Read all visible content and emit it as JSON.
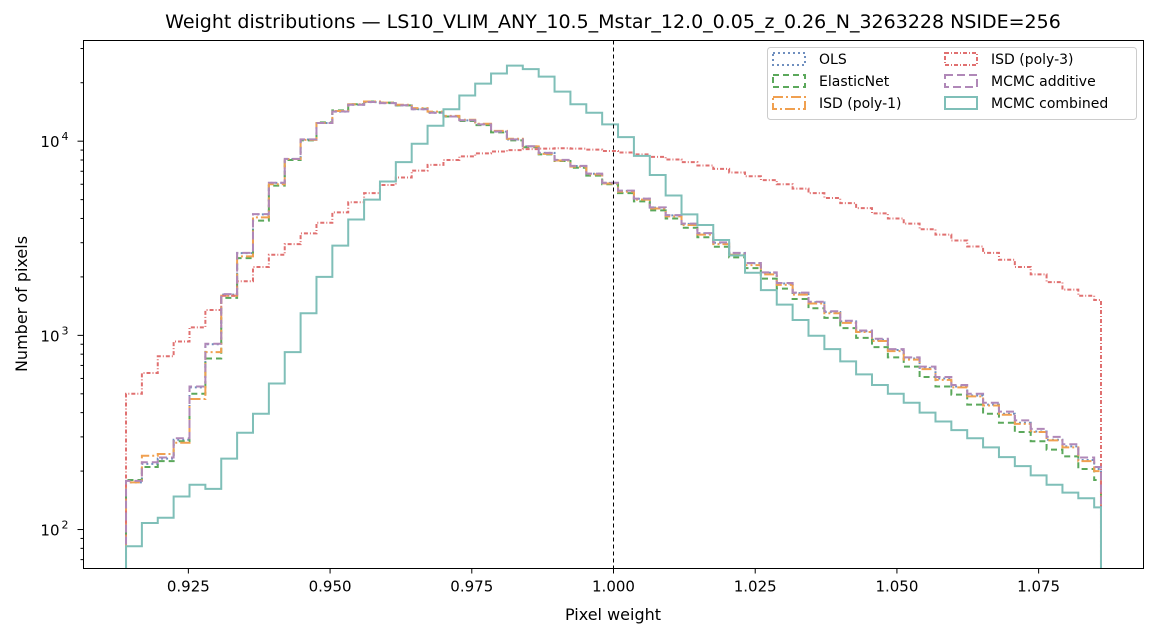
{
  "chart_data": {
    "type": "histogram",
    "title": "Weight distributions — LS10_VLIM_ANY_10.5_Mstar_12.0_0.05_z_0.26_N_3263228  NSIDE=256",
    "xlabel": "Pixel weight",
    "ylabel": "Number of pixels",
    "yscale": "log",
    "xlim": [
      0.9065,
      1.0935
    ],
    "ylim": [
      63,
      33000
    ],
    "xticks": [
      0.925,
      0.95,
      0.975,
      1.0,
      1.025,
      1.05,
      1.075
    ],
    "xtick_labels": [
      "0.925",
      "0.950",
      "0.975",
      "1.000",
      "1.025",
      "1.050",
      "1.075"
    ],
    "yticks": [
      100,
      1000,
      10000
    ],
    "ytick_labels": [
      "10",
      "10",
      "10"
    ],
    "ytick_exponents": [
      "2",
      "3",
      "4"
    ],
    "reference_line": {
      "x": 1.0,
      "style": "dashed",
      "color": "#000000"
    },
    "bin_edges": [
      0.914,
      0.9168,
      0.9196,
      0.9224,
      0.9252,
      0.928,
      0.9308,
      0.9336,
      0.9364,
      0.9392,
      0.942,
      0.9448,
      0.9476,
      0.9504,
      0.9532,
      0.956,
      0.9588,
      0.9616,
      0.9644,
      0.9672,
      0.97,
      0.9728,
      0.9756,
      0.9784,
      0.9812,
      0.984,
      0.9868,
      0.9896,
      0.9924,
      0.9952,
      0.998,
      1.0008,
      1.0036,
      1.0064,
      1.0092,
      1.012,
      1.0148,
      1.0176,
      1.0204,
      1.0232,
      1.026,
      1.0288,
      1.0316,
      1.0344,
      1.0372,
      1.04,
      1.0428,
      1.0456,
      1.0484,
      1.0512,
      1.054,
      1.0568,
      1.0596,
      1.0624,
      1.0652,
      1.068,
      1.0708,
      1.0736,
      1.0764,
      1.0792,
      1.082,
      1.0848,
      1.086
    ],
    "legend_location": "upper right",
    "legend_columns": 2,
    "series": [
      {
        "name": "OLS",
        "color": "#6f8fbf",
        "dash": "2,3",
        "counts": [
          175,
          218,
          232,
          290,
          540,
          900,
          1620,
          2650,
          4200,
          6100,
          8100,
          10200,
          12400,
          14200,
          15400,
          15900,
          15700,
          15300,
          14600,
          14000,
          13400,
          12800,
          12200,
          11200,
          10200,
          9400,
          8700,
          8000,
          7450,
          6800,
          6100,
          5550,
          5050,
          4550,
          4150,
          3750,
          3350,
          3000,
          2650,
          2350,
          2100,
          1850,
          1650,
          1480,
          1320,
          1180,
          1050,
          950,
          840,
          760,
          680,
          600,
          545,
          490,
          440,
          395,
          355,
          320,
          290,
          268,
          228,
          205
        ]
      },
      {
        "name": "ElasticNet",
        "color": "#5ba85b",
        "dash": "6,4",
        "counts": [
          180,
          210,
          225,
          285,
          500,
          760,
          1560,
          2500,
          3900,
          5900,
          8000,
          10100,
          12500,
          14400,
          15500,
          16000,
          15800,
          15300,
          14700,
          14100,
          13400,
          12700,
          12100,
          11100,
          10100,
          9300,
          8550,
          7900,
          7300,
          6650,
          6000,
          5400,
          4900,
          4400,
          4000,
          3580,
          3200,
          2860,
          2520,
          2220,
          1960,
          1740,
          1540,
          1380,
          1230,
          1090,
          970,
          870,
          770,
          690,
          610,
          545,
          495,
          440,
          395,
          355,
          318,
          285,
          258,
          238,
          205,
          180
        ]
      },
      {
        "name": "ISD (poly-1)",
        "color": "#f0a050",
        "dash": "10,3,2,3",
        "counts": [
          175,
          240,
          245,
          280,
          470,
          820,
          1600,
          2550,
          4050,
          6000,
          8100,
          10150,
          12400,
          14300,
          15500,
          16000,
          15800,
          15400,
          14800,
          14200,
          13500,
          12900,
          12300,
          11300,
          10300,
          9400,
          8600,
          7950,
          7400,
          6750,
          6050,
          5500,
          5000,
          4500,
          4100,
          3700,
          3300,
          2950,
          2600,
          2300,
          2060,
          1820,
          1620,
          1460,
          1300,
          1160,
          1040,
          935,
          830,
          750,
          670,
          590,
          540,
          485,
          435,
          390,
          350,
          318,
          288,
          265,
          225,
          200
        ]
      },
      {
        "name": "ISD (poly-3)",
        "color": "#e07070",
        "dash": "4,2,1,2",
        "counts": [
          500,
          640,
          780,
          930,
          1100,
          1350,
          1600,
          1900,
          2250,
          2600,
          2950,
          3350,
          3800,
          4300,
          4850,
          5400,
          5950,
          6500,
          7050,
          7550,
          8000,
          8350,
          8650,
          8850,
          9000,
          9100,
          9150,
          9200,
          9150,
          9050,
          8900,
          8750,
          8550,
          8300,
          8050,
          7800,
          7500,
          7200,
          6900,
          6600,
          6300,
          6000,
          5700,
          5400,
          5100,
          4800,
          4520,
          4250,
          4000,
          3760,
          3520,
          3300,
          3080,
          2870,
          2660,
          2450,
          2250,
          2060,
          1880,
          1720,
          1600,
          1520
        ]
      },
      {
        "name": "MCMC additive",
        "color": "#b088b8",
        "dash": "8,4",
        "counts": [
          178,
          222,
          235,
          295,
          545,
          905,
          1630,
          2660,
          4210,
          6110,
          8110,
          10210,
          12410,
          14210,
          15410,
          15910,
          15710,
          15310,
          14610,
          14010,
          13410,
          12810,
          12210,
          11210,
          10210,
          9410,
          8710,
          8010,
          7460,
          6810,
          6110,
          5560,
          5060,
          4560,
          4160,
          3760,
          3360,
          3010,
          2660,
          2360,
          2110,
          1860,
          1660,
          1490,
          1330,
          1190,
          1060,
          960,
          850,
          770,
          690,
          610,
          555,
          500,
          450,
          405,
          365,
          330,
          300,
          275,
          235,
          210
        ]
      },
      {
        "name": "MCMC combined",
        "color": "#7fbfb8",
        "dash": "",
        "counts": [
          82,
          108,
          115,
          148,
          170,
          162,
          232,
          315,
          395,
          565,
          820,
          1300,
          2000,
          2900,
          3950,
          5000,
          6200,
          7800,
          9700,
          12000,
          14600,
          17200,
          19800,
          22300,
          24500,
          23500,
          21500,
          18000,
          15500,
          14000,
          12200,
          10500,
          8400,
          6700,
          5250,
          4200,
          3700,
          3100,
          2580,
          2100,
          1710,
          1440,
          1200,
          995,
          850,
          735,
          630,
          555,
          500,
          450,
          400,
          360,
          325,
          295,
          265,
          236,
          212,
          190,
          170,
          155,
          145,
          130
        ]
      }
    ]
  }
}
